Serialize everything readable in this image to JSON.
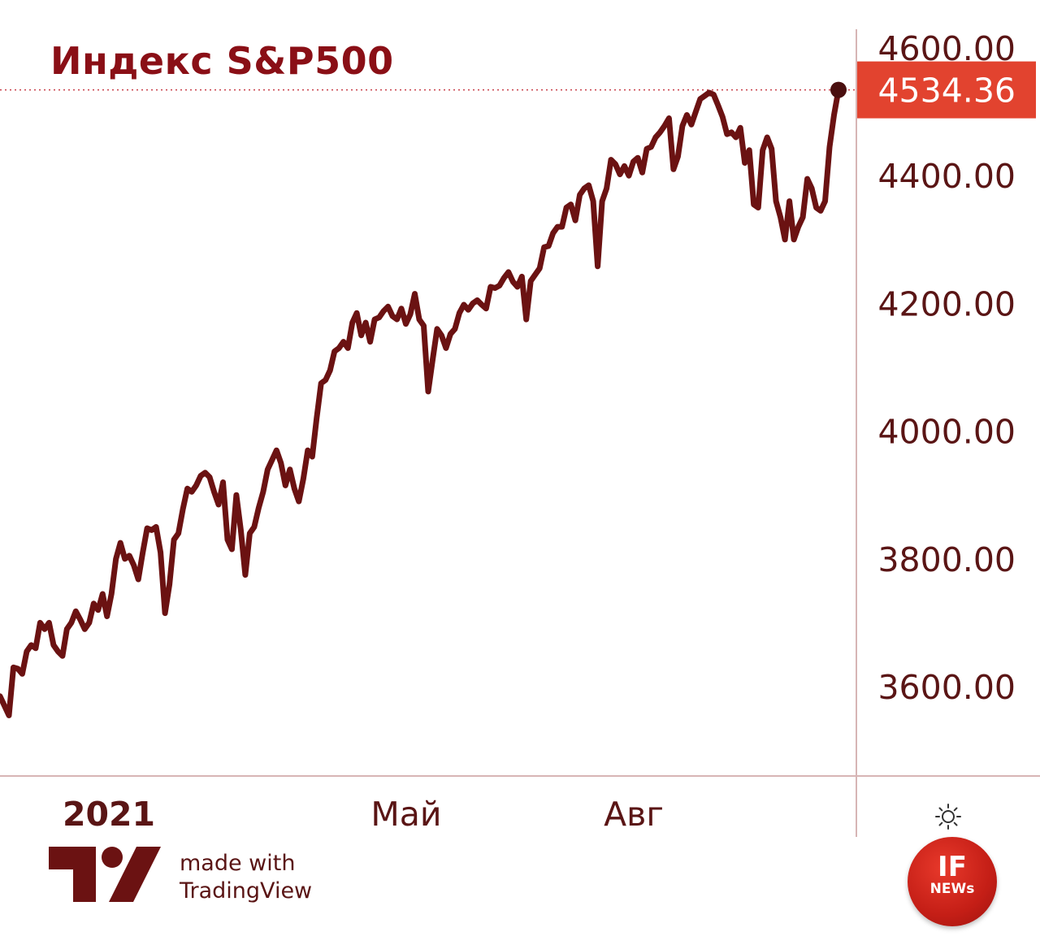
{
  "chart_data": {
    "type": "line",
    "title": "Индекс S&P500",
    "y_ticks": [
      "4600.00",
      "4400.00",
      "4200.00",
      "4000.00",
      "3800.00",
      "3600.00"
    ],
    "x_ticks": [
      "2021",
      "Май",
      "Авг"
    ],
    "ylim": [
      3480,
      4660
    ],
    "last_value_label": "4534.36",
    "grid": false,
    "colors": {
      "line": "#6b1212",
      "title": "#8a0f16",
      "price_label_bg": "#e2432f",
      "axis": "#d7b5b5"
    },
    "series": [
      {
        "values": [
          3585,
          3570,
          3555,
          3630,
          3628,
          3620,
          3655,
          3665,
          3660,
          3700,
          3690,
          3700,
          3665,
          3655,
          3648,
          3690,
          3700,
          3718,
          3705,
          3690,
          3700,
          3730,
          3720,
          3745,
          3710,
          3745,
          3800,
          3825,
          3800,
          3805,
          3790,
          3768,
          3810,
          3848,
          3845,
          3850,
          3810,
          3715,
          3760,
          3830,
          3840,
          3878,
          3910,
          3905,
          3915,
          3930,
          3935,
          3928,
          3905,
          3885,
          3920,
          3830,
          3815,
          3900,
          3845,
          3775,
          3840,
          3850,
          3880,
          3905,
          3940,
          3955,
          3970,
          3950,
          3915,
          3940,
          3910,
          3890,
          3925,
          3970,
          3960,
          4020,
          4075,
          4080,
          4095,
          4125,
          4130,
          4140,
          4130,
          4170,
          4185,
          4150,
          4170,
          4140,
          4175,
          4178,
          4188,
          4195,
          4180,
          4175,
          4192,
          4168,
          4183,
          4215,
          4175,
          4165,
          4062,
          4112,
          4160,
          4150,
          4130,
          4152,
          4160,
          4185,
          4198,
          4190,
          4200,
          4205,
          4198,
          4192,
          4226,
          4224,
          4228,
          4240,
          4249,
          4234,
          4226,
          4242,
          4175,
          4235,
          4245,
          4255,
          4288,
          4290,
          4310,
          4320,
          4320,
          4350,
          4355,
          4330,
          4370,
          4380,
          4385,
          4360,
          4258,
          4360,
          4380,
          4425,
          4418,
          4402,
          4415,
          4400,
          4422,
          4428,
          4405,
          4442,
          4445,
          4460,
          4468,
          4478,
          4490,
          4410,
          4430,
          4478,
          4495,
          4480,
          4500,
          4520,
          4525,
          4530,
          4527,
          4510,
          4492,
          4465,
          4468,
          4460,
          4475,
          4420,
          4440,
          4355,
          4350,
          4440,
          4460,
          4442,
          4360,
          4335,
          4300,
          4360,
          4300,
          4320,
          4335,
          4395,
          4380,
          4350,
          4345,
          4360,
          4445,
          4495,
          4534.36
        ]
      }
    ]
  },
  "footer": {
    "brand_line1": "made with",
    "brand_line2": "TradingView"
  },
  "badge": {
    "top": "IF",
    "bottom": "NEWs"
  },
  "icons": {
    "settings": "sun-icon",
    "logo": "tradingview-logo-icon"
  }
}
